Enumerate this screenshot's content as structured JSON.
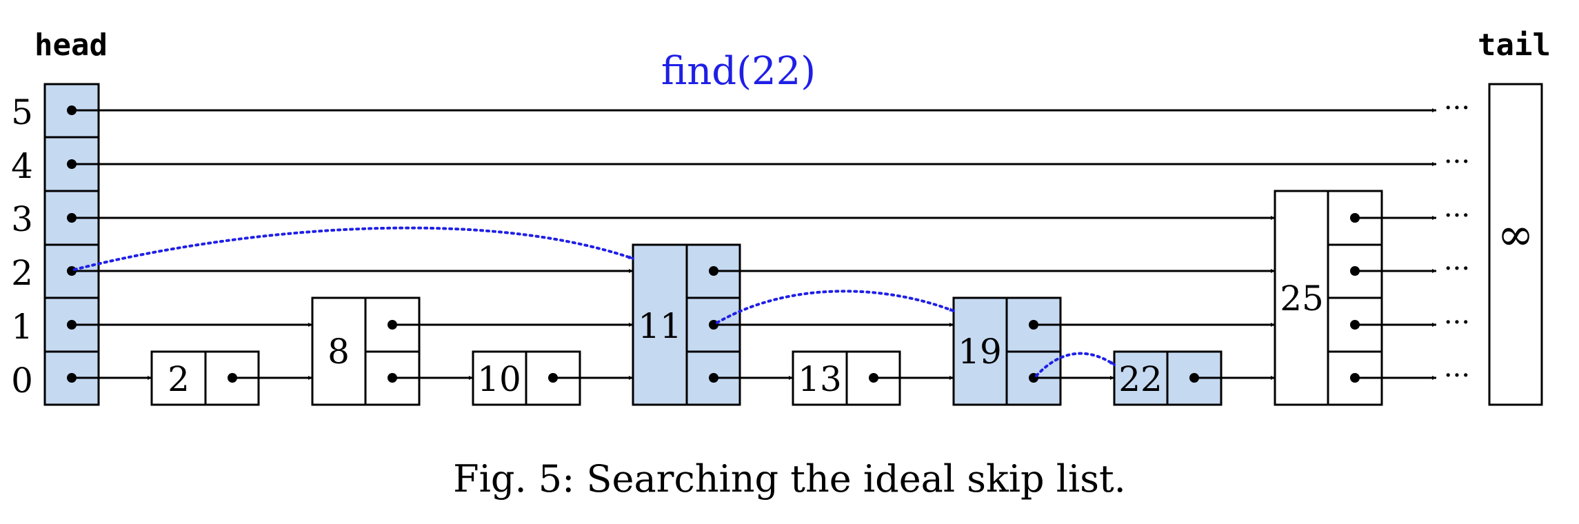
{
  "head_label": "head",
  "tail_label": "tail",
  "level_labels": [
    "5",
    "4",
    "3",
    "2",
    "1",
    "0"
  ],
  "operation_label": "find(22)",
  "caption": "Fig. 5: Searching the ideal skip list.",
  "ellipsis": "···",
  "tail_value": "∞",
  "nodes": [
    {
      "key": "2",
      "height": 1,
      "on_search_path": false
    },
    {
      "key": "8",
      "height": 2,
      "on_search_path": false
    },
    {
      "key": "10",
      "height": 1,
      "on_search_path": false
    },
    {
      "key": "11",
      "height": 3,
      "on_search_path": true
    },
    {
      "key": "13",
      "height": 1,
      "on_search_path": false
    },
    {
      "key": "19",
      "height": 2,
      "on_search_path": true
    },
    {
      "key": "22",
      "height": 1,
      "on_search_path": true
    },
    {
      "key": "25",
      "height": 4,
      "on_search_path": false
    }
  ],
  "colors": {
    "highlight_fill": "#c5d9f1",
    "search_path": "#1f1fe6",
    "stroke": "#000000"
  }
}
